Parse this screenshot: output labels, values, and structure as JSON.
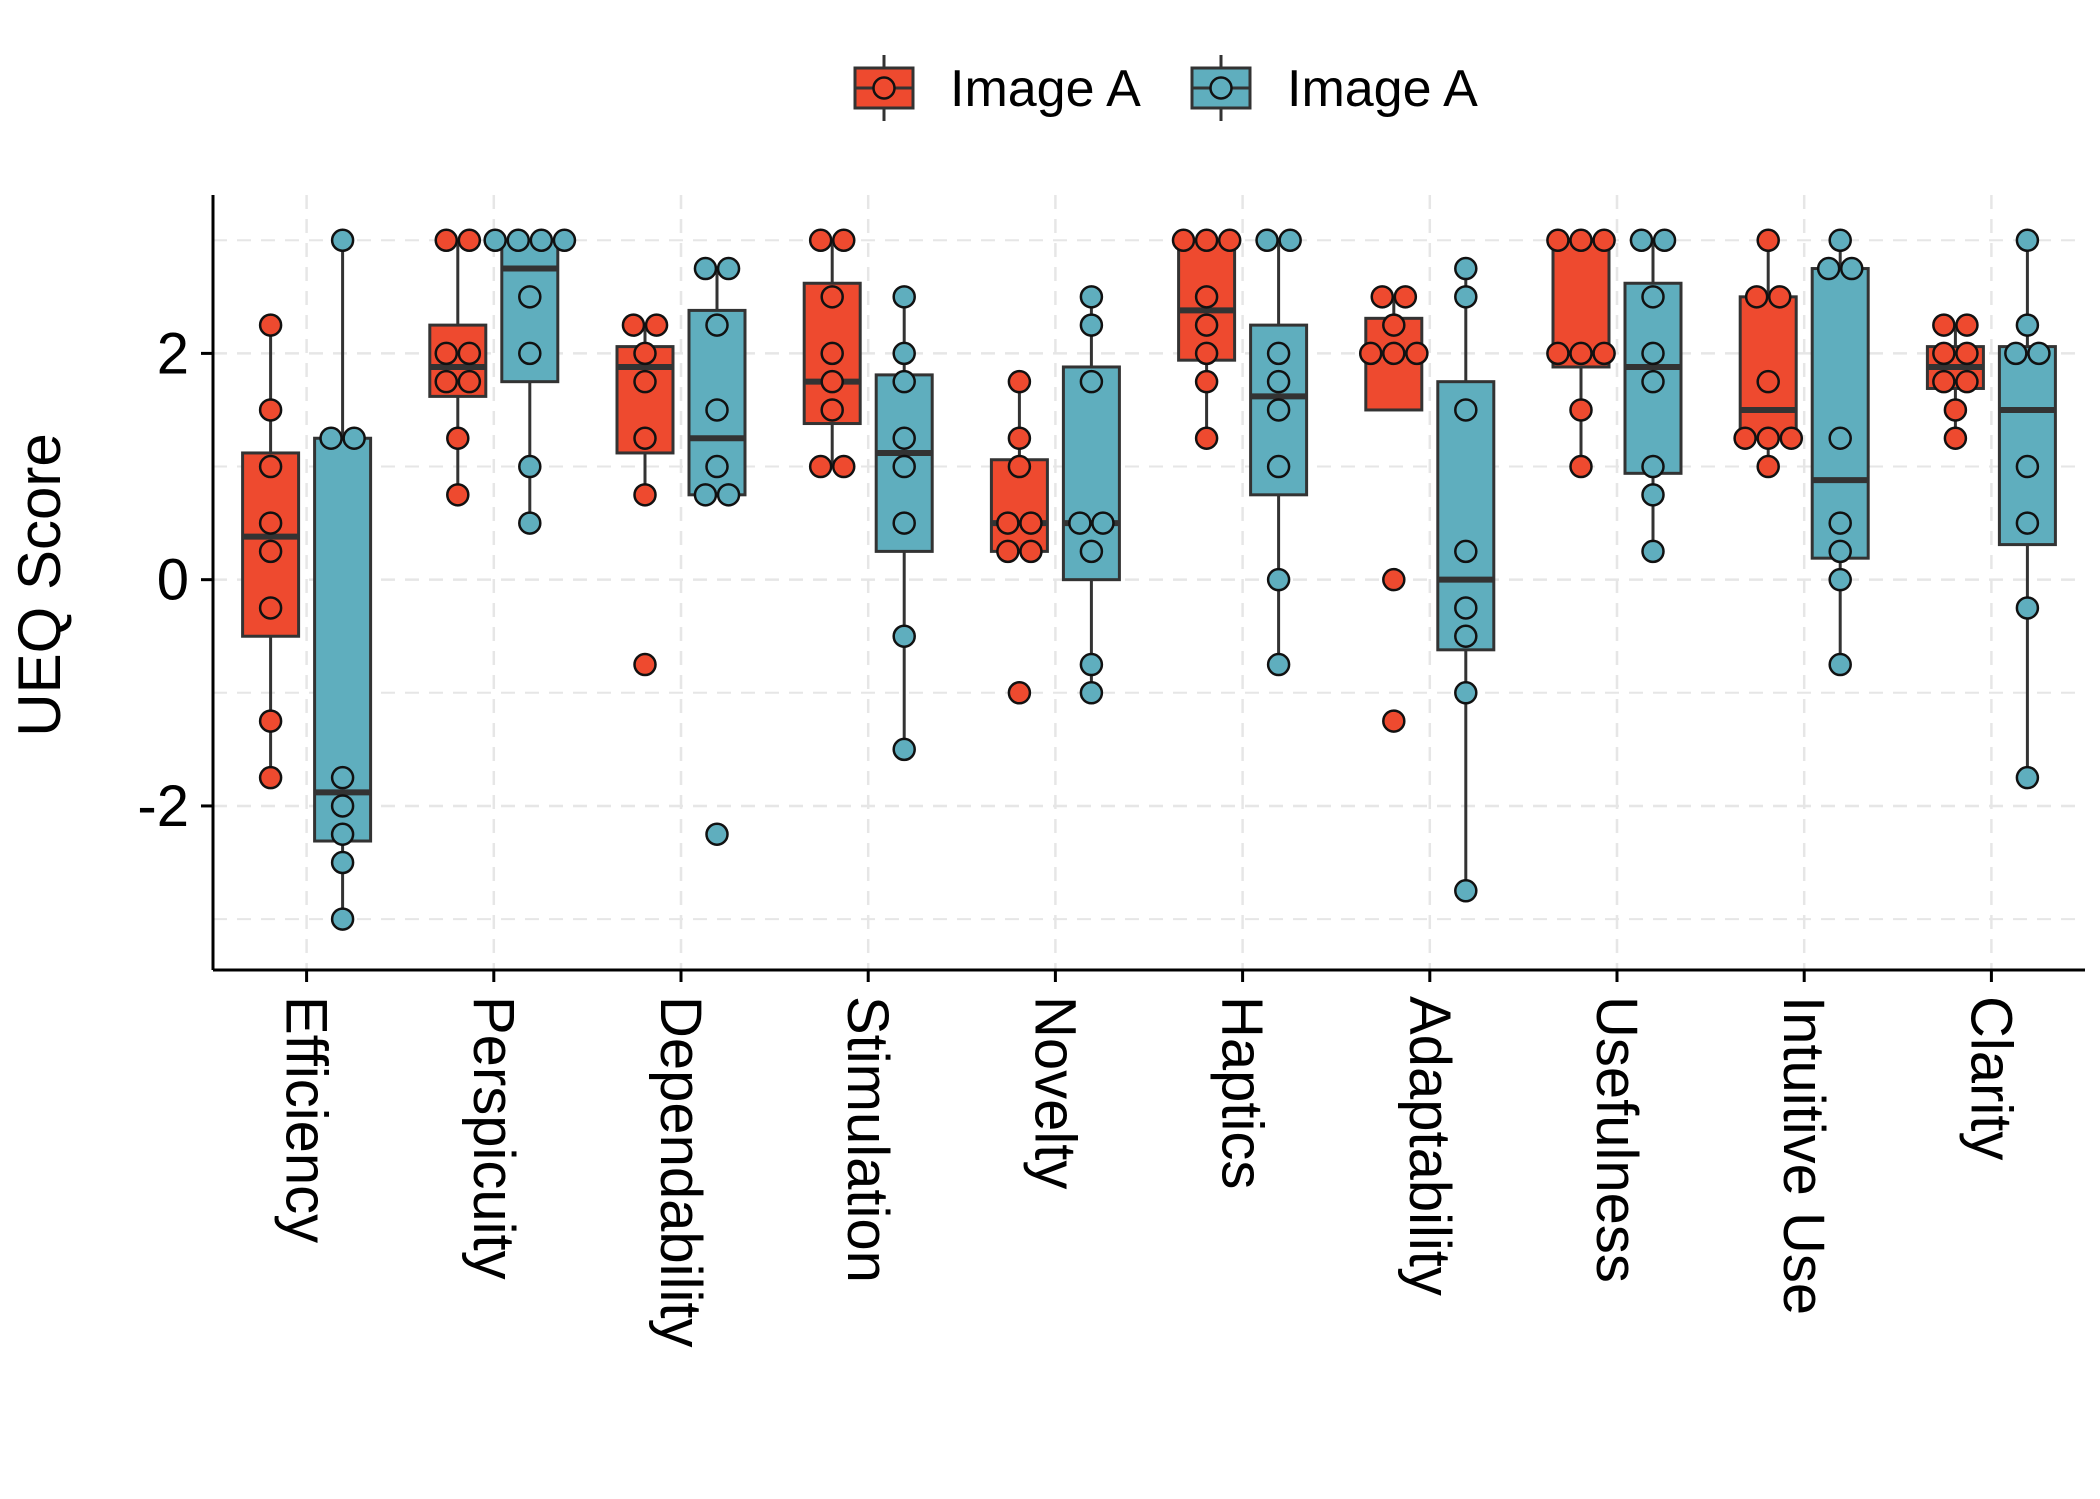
{
  "chart_data": {
    "type": "boxplot",
    "title": "",
    "xlabel": "",
    "ylabel": "UEQ Score",
    "ylim": [
      -3.45,
      3.4
    ],
    "yticks": [
      -2,
      0,
      2
    ],
    "ytick_labels": [
      "-2",
      "0",
      "2"
    ],
    "grid": true,
    "legend_position": "top",
    "categories": [
      "Efficiency",
      "Perspicuity",
      "Dependability",
      "Stimulation",
      "Novelty",
      "Haptics",
      "Adaptability",
      "Usefulness",
      "Intuitive Use",
      "Clarity"
    ],
    "series": [
      {
        "name": "Image A",
        "color": "#EE4A2F",
        "boxes": [
          {
            "q1": -0.5,
            "median": 0.38,
            "q3": 1.12,
            "whisker_low": -1.75,
            "whisker_high": 2.25,
            "points": [
              2.25,
              1.5,
              1.0,
              0.5,
              0.25,
              -0.25,
              -1.25,
              -1.75
            ]
          },
          {
            "q1": 1.62,
            "median": 1.88,
            "q3": 2.25,
            "whisker_low": 0.75,
            "whisker_high": 3.0,
            "points": [
              3.0,
              3.0,
              2.0,
              2.0,
              1.75,
              1.75,
              1.25,
              0.75
            ]
          },
          {
            "q1": 1.12,
            "median": 1.88,
            "q3": 2.06,
            "whisker_low": 0.75,
            "whisker_high": 2.25,
            "points": [
              2.25,
              2.25,
              2.0,
              1.75,
              1.25,
              0.75,
              -0.75
            ]
          },
          {
            "q1": 1.38,
            "median": 1.75,
            "q3": 2.62,
            "whisker_low": 1.0,
            "whisker_high": 3.0,
            "points": [
              3.0,
              3.0,
              2.5,
              2.0,
              1.75,
              1.5,
              1.0,
              1.0
            ]
          },
          {
            "q1": 0.25,
            "median": 0.5,
            "q3": 1.06,
            "whisker_low": 0.25,
            "whisker_high": 1.75,
            "points": [
              1.75,
              1.25,
              1.0,
              0.5,
              0.5,
              0.25,
              0.25,
              -1.0
            ]
          },
          {
            "q1": 1.94,
            "median": 2.38,
            "q3": 3.0,
            "whisker_low": 1.25,
            "whisker_high": 3.0,
            "points": [
              3.0,
              3.0,
              3.0,
              2.5,
              2.25,
              2.0,
              1.75,
              1.25
            ]
          },
          {
            "q1": 1.5,
            "median": 2.0,
            "q3": 2.31,
            "whisker_low": 1.5,
            "whisker_high": 2.5,
            "points": [
              2.5,
              2.5,
              2.25,
              2.0,
              2.0,
              2.0,
              0.0,
              -1.25
            ]
          },
          {
            "q1": 1.88,
            "median": 2.0,
            "q3": 3.0,
            "whisker_low": 1.0,
            "whisker_high": 3.0,
            "points": [
              3.0,
              3.0,
              3.0,
              2.0,
              2.0,
              2.0,
              1.5,
              1.0
            ]
          },
          {
            "q1": 1.25,
            "median": 1.5,
            "q3": 2.5,
            "whisker_low": 1.0,
            "whisker_high": 3.0,
            "points": [
              3.0,
              2.5,
              2.5,
              1.75,
              1.25,
              1.25,
              1.25,
              1.0
            ]
          },
          {
            "q1": 1.69,
            "median": 1.88,
            "q3": 2.06,
            "whisker_low": 1.25,
            "whisker_high": 2.25,
            "points": [
              2.25,
              2.25,
              2.0,
              2.0,
              1.75,
              1.75,
              1.5,
              1.25
            ]
          }
        ]
      },
      {
        "name": "Image A",
        "color": "#5FAEBE",
        "boxes": [
          {
            "q1": -2.31,
            "median": -1.88,
            "q3": 1.25,
            "whisker_low": -3.0,
            "whisker_high": 3.0,
            "points": [
              3.0,
              1.25,
              1.25,
              -1.75,
              -2.0,
              -2.25,
              -2.5,
              -3.0
            ]
          },
          {
            "q1": 1.75,
            "median": 2.75,
            "q3": 3.0,
            "whisker_low": 0.5,
            "whisker_high": 3.0,
            "points": [
              3.0,
              3.0,
              3.0,
              3.0,
              2.5,
              2.0,
              1.0,
              0.5
            ]
          },
          {
            "q1": 0.75,
            "median": 1.25,
            "q3": 2.38,
            "whisker_low": 0.75,
            "whisker_high": 2.75,
            "points": [
              2.75,
              2.75,
              2.25,
              1.5,
              1.0,
              0.75,
              0.75,
              -2.25
            ]
          },
          {
            "q1": 0.25,
            "median": 1.12,
            "q3": 1.81,
            "whisker_low": -1.5,
            "whisker_high": 2.5,
            "points": [
              2.5,
              2.0,
              1.75,
              1.25,
              1.0,
              0.5,
              -0.5,
              -1.5
            ]
          },
          {
            "q1": 0.0,
            "median": 0.5,
            "q3": 1.88,
            "whisker_low": -1.0,
            "whisker_high": 2.5,
            "points": [
              2.5,
              2.25,
              1.75,
              0.5,
              0.5,
              0.25,
              -0.75,
              -1.0
            ]
          },
          {
            "q1": 0.75,
            "median": 1.62,
            "q3": 2.25,
            "whisker_low": -0.75,
            "whisker_high": 3.0,
            "points": [
              3.0,
              3.0,
              2.0,
              1.75,
              1.5,
              1.0,
              0.0,
              -0.75
            ]
          },
          {
            "q1": -0.62,
            "median": 0.0,
            "q3": 1.75,
            "whisker_low": -2.75,
            "whisker_high": 2.75,
            "points": [
              2.75,
              2.5,
              1.5,
              0.25,
              -0.25,
              -0.5,
              -1.0,
              -2.75
            ]
          },
          {
            "q1": 0.94,
            "median": 1.88,
            "q3": 2.62,
            "whisker_low": 0.25,
            "whisker_high": 3.0,
            "points": [
              3.0,
              3.0,
              2.5,
              2.0,
              1.75,
              1.0,
              0.75,
              0.25
            ]
          },
          {
            "q1": 0.19,
            "median": 0.88,
            "q3": 2.75,
            "whisker_low": -0.75,
            "whisker_high": 3.0,
            "points": [
              3.0,
              2.75,
              2.75,
              1.25,
              0.5,
              0.25,
              0.0,
              -0.75
            ]
          },
          {
            "q1": 0.31,
            "median": 1.5,
            "q3": 2.06,
            "whisker_low": -1.75,
            "whisker_high": 3.0,
            "points": [
              3.0,
              2.25,
              2.0,
              2.0,
              1.0,
              0.5,
              -0.25,
              -1.75
            ]
          }
        ]
      }
    ]
  }
}
